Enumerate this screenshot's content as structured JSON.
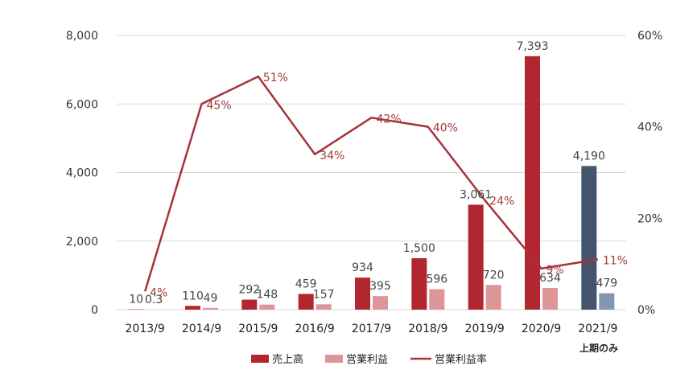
{
  "chart_data": {
    "type": "bar",
    "categories": [
      "2013/9",
      "2014/9",
      "2015/9",
      "2016/9",
      "2017/9",
      "2018/9",
      "2019/9",
      "2020/9",
      "2021/9"
    ],
    "series": [
      {
        "name": "売上高",
        "kind": "bar",
        "axis": "left",
        "values": [
          10,
          110,
          292,
          459,
          934,
          1500,
          3061,
          7393,
          4190
        ],
        "labels": [
          "10",
          "110",
          "292",
          "459",
          "934",
          "1,500",
          "3,061",
          "7,393",
          "4,190"
        ],
        "colors": [
          "#b2262f",
          "#b2262f",
          "#b2262f",
          "#b2262f",
          "#b2262f",
          "#b2262f",
          "#b2262f",
          "#b2262f",
          "#44546a"
        ]
      },
      {
        "name": "営業利益",
        "kind": "bar",
        "axis": "left",
        "values": [
          0.3,
          49,
          148,
          157,
          395,
          596,
          720,
          634,
          479
        ],
        "labels": [
          "0.3",
          "49",
          "148",
          "157",
          "395",
          "596",
          "720",
          "634",
          "479"
        ],
        "colors": [
          "#dc9698",
          "#dc9698",
          "#dc9698",
          "#dc9698",
          "#dc9698",
          "#dc9698",
          "#dc9698",
          "#dc9698",
          "#8497b0"
        ]
      },
      {
        "name": "営業利益率",
        "kind": "line",
        "axis": "right",
        "values": [
          4,
          45,
          51,
          34,
          42,
          40,
          24,
          9,
          11
        ],
        "labels": [
          "4%",
          "45%",
          "51%",
          "34%",
          "42%",
          "40%",
          "24%",
          "9%",
          "11%"
        ],
        "color": "#a8323c"
      }
    ],
    "yticks_left": [
      "0",
      "2,000",
      "4,000",
      "6,000",
      "8,000"
    ],
    "ylim_left": [
      0,
      8000
    ],
    "yticks_right": [
      "0%",
      "20%",
      "40%",
      "60%"
    ],
    "ylim_right": [
      0,
      60
    ],
    "grid": "horizontal",
    "legend_position": "bottom",
    "note": "上期のみ"
  }
}
